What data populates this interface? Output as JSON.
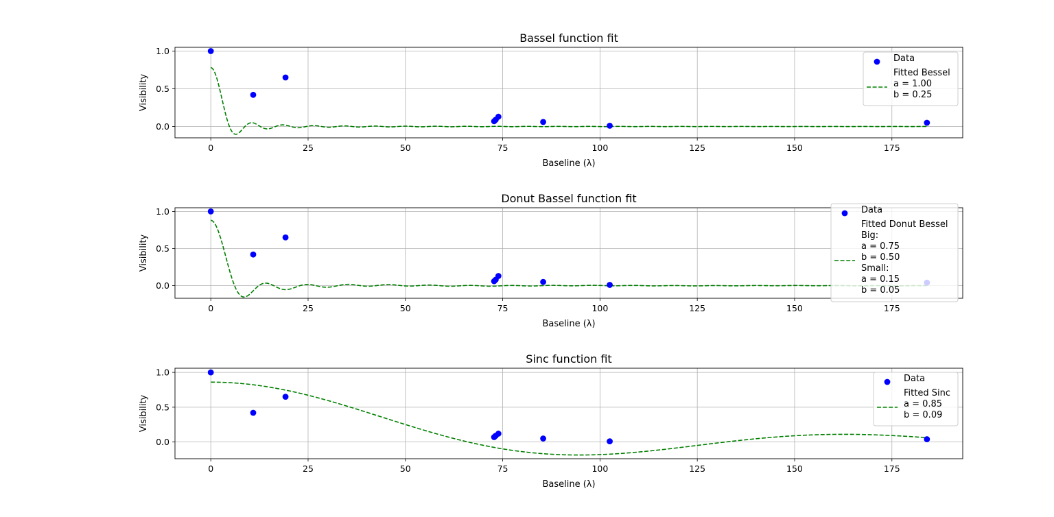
{
  "chart_data": [
    {
      "type": "scatter",
      "title": "Bassel function fit",
      "xlabel": "Baseline (λ)",
      "ylabel": "Visibility",
      "xlim": [
        -9.2,
        193.2
      ],
      "ylim": [
        -0.15,
        1.05
      ],
      "xticks": [
        0,
        25,
        50,
        75,
        100,
        125,
        150,
        175
      ],
      "yticks": [
        0.0,
        0.5,
        1.0
      ],
      "xtick_labels": [
        "0",
        "25",
        "50",
        "75",
        "100",
        "125",
        "150",
        "175"
      ],
      "ytick_labels": [
        "0.0",
        "0.5",
        "1.0"
      ],
      "grid": true,
      "legend_position": "top-right",
      "model": "bessel",
      "params": {
        "a": 1.0,
        "b": 0.25
      },
      "series": [
        {
          "name": "Data",
          "kind": "points",
          "color": "#0000ff",
          "x": [
            0,
            10.9,
            19.2,
            72.8,
            73.2,
            73.9,
            85.4,
            102.5,
            184
          ],
          "y": [
            1.0,
            0.42,
            0.65,
            0.07,
            0.09,
            0.13,
            0.06,
            0.01,
            0.05
          ]
        },
        {
          "name": "Fitted Bessel",
          "kind": "line",
          "color": "#008000"
        }
      ],
      "legend": [
        {
          "lines": [
            "Data"
          ],
          "kind": "points"
        },
        {
          "lines": [
            "Fitted Bessel",
            "a = 1.00",
            "b = 0.25"
          ],
          "kind": "line"
        }
      ]
    },
    {
      "type": "scatter",
      "title": "Donut Bassel function fit",
      "xlabel": "Baseline (λ)",
      "ylabel": "Visibility",
      "xlim": [
        -9.2,
        193.2
      ],
      "ylim": [
        -0.17,
        1.05
      ],
      "xticks": [
        0,
        25,
        50,
        75,
        100,
        125,
        150,
        175
      ],
      "yticks": [
        0.0,
        0.5,
        1.0
      ],
      "xtick_labels": [
        "0",
        "25",
        "50",
        "75",
        "100",
        "125",
        "150",
        "175"
      ],
      "ytick_labels": [
        "0.0",
        "0.5",
        "1.0"
      ],
      "grid": true,
      "legend_position": "top-right",
      "model": "donut",
      "params": {
        "big_a": 0.75,
        "big_b": 0.5,
        "small_a": 0.15,
        "small_b": 0.05
      },
      "series": [
        {
          "name": "Data",
          "kind": "points",
          "color": "#0000ff",
          "x": [
            0,
            10.9,
            19.2,
            72.8,
            73.2,
            73.9,
            85.4,
            102.5,
            184
          ],
          "y": [
            1.0,
            0.42,
            0.65,
            0.06,
            0.08,
            0.13,
            0.05,
            0.01,
            0.04
          ]
        },
        {
          "name": "Fitted Donut Bessel",
          "kind": "line",
          "color": "#008000"
        }
      ],
      "legend": [
        {
          "lines": [
            "Data"
          ],
          "kind": "points"
        },
        {
          "lines": [
            "Fitted Donut Bessel",
            "Big:",
            "a = 0.75",
            "b = 0.50",
            "Small:",
            "a = 0.15",
            "b = 0.05"
          ],
          "kind": "line"
        }
      ]
    },
    {
      "type": "scatter",
      "title": "Sinc function fit",
      "xlabel": "Baseline (λ)",
      "ylabel": "Visibility",
      "xlim": [
        -9.2,
        193.2
      ],
      "ylim": [
        -0.24,
        1.06
      ],
      "xticks": [
        0,
        25,
        50,
        75,
        100,
        125,
        150,
        175
      ],
      "yticks": [
        0.0,
        0.5,
        1.0
      ],
      "xtick_labels": [
        "0",
        "25",
        "50",
        "75",
        "100",
        "125",
        "150",
        "175"
      ],
      "ytick_labels": [
        "0.0",
        "0.5",
        "1.0"
      ],
      "grid": true,
      "legend_position": "top-right",
      "model": "sinc",
      "params": {
        "a": 0.85,
        "b": 0.09
      },
      "series": [
        {
          "name": "Data",
          "kind": "points",
          "color": "#0000ff",
          "x": [
            0,
            10.9,
            19.2,
            72.8,
            73.2,
            73.9,
            85.4,
            102.5,
            184
          ],
          "y": [
            1.0,
            0.42,
            0.65,
            0.07,
            0.09,
            0.12,
            0.05,
            0.01,
            0.04
          ]
        },
        {
          "name": "Fitted Sinc",
          "kind": "line",
          "color": "#008000"
        }
      ],
      "legend": [
        {
          "lines": [
            "Data"
          ],
          "kind": "points"
        },
        {
          "lines": [
            "Fitted Sinc",
            "a = 0.85",
            "b = 0.09"
          ],
          "kind": "line"
        }
      ]
    }
  ]
}
